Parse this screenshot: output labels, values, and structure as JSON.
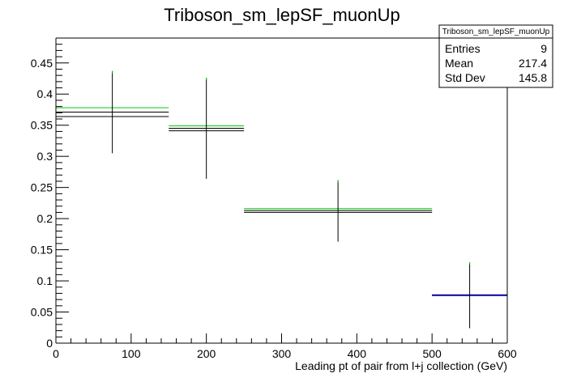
{
  "chart_data": {
    "type": "histogram",
    "title": "Triboson_sm_lepSF_muonUp",
    "xlabel": "Leading pt of pair from l+j collection (GeV)",
    "ylabel": "",
    "xlim": [
      0,
      600
    ],
    "ylim": [
      0,
      0.49
    ],
    "x_ticks": [
      0,
      100,
      200,
      300,
      400,
      500,
      600
    ],
    "y_ticks": [
      0,
      0.05,
      0.1,
      0.15,
      0.2,
      0.25,
      0.3,
      0.35,
      0.4,
      0.45
    ],
    "x_tick_labels": [
      "0",
      "100",
      "200",
      "300",
      "400",
      "500",
      "600"
    ],
    "y_tick_labels": [
      "0",
      "0.05",
      "0.1",
      "0.15",
      "0.2",
      "0.25",
      "0.3",
      "0.35",
      "0.4",
      "0.45"
    ],
    "grid": false,
    "bin_edges": [
      0,
      150,
      250,
      500,
      600
    ],
    "series": [
      {
        "color": "#00cc00",
        "values": [
          0.378,
          0.349,
          0.216,
          0.077
        ]
      },
      {
        "color": "#000000",
        "values": [
          0.371,
          0.345,
          0.213,
          0.077
        ]
      },
      {
        "color": "#000000",
        "values": [
          0.364,
          0.341,
          0.21,
          0.077
        ]
      },
      {
        "color": "#000099",
        "values": [
          null,
          null,
          null,
          0.077
        ]
      }
    ],
    "error_bars": [
      {
        "x": 75,
        "y": 0.371,
        "low": 0.305,
        "high": 0.437,
        "color": "#000000"
      },
      {
        "x": 200,
        "y": 0.345,
        "low": 0.264,
        "high": 0.426,
        "color": "#000000"
      },
      {
        "x": 375,
        "y": 0.213,
        "low": 0.163,
        "high": 0.262,
        "color": "#000000"
      },
      {
        "x": 550,
        "y": 0.077,
        "low": 0.024,
        "high": 0.13,
        "color": "#000000"
      }
    ],
    "error_caps_green": [
      0.437,
      0.426,
      0.262,
      0.13
    ]
  },
  "stats_box": {
    "title": "Triboson_sm_lepSF_muonUp",
    "rows": [
      {
        "label": "Entries",
        "value": "9"
      },
      {
        "label": "Mean",
        "value": "217.4"
      },
      {
        "label": "Std Dev",
        "value": "145.8"
      }
    ]
  },
  "colors": {
    "frame": "#000000",
    "background": "#ffffff"
  }
}
